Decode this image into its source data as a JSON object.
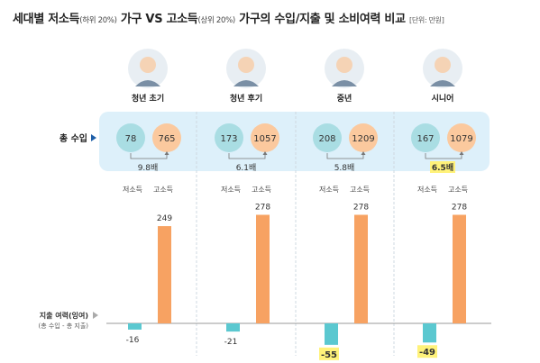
{
  "title": {
    "part1": "세대별 저소득",
    "part1_note": "(하위 20%)",
    "part2": " 가구 VS 고소득",
    "part2_note": "(상위 20%)",
    "part3": " 가구의 수입/지출 및 소비여력 비교",
    "unit": "[단위: 만원]"
  },
  "row_labels": {
    "income": "총 수입",
    "surplus_line1": "지출 여력(잉여)",
    "surplus_line2": "(총 수입 - 총 지출)"
  },
  "colors": {
    "low": "#5BC8D0",
    "high": "#F7A262",
    "panel": "#DDF0FA",
    "low_circle": "#A9DDE3",
    "high_circle": "#FBC99E",
    "highlight": "#FFF27A",
    "arrow": "#1F5FA8"
  },
  "chart_data": {
    "type": "bar",
    "categories": [
      "청년 초기",
      "청년 후기",
      "중년",
      "시니어"
    ],
    "series_labels": [
      "저소득",
      "고소득"
    ],
    "total_income": {
      "low": [
        78,
        173,
        208,
        167
      ],
      "high": [
        765,
        1057,
        1209,
        1079
      ],
      "ratio_labels": [
        "9.8배",
        "6.1배",
        "5.8배",
        "6.5배"
      ],
      "highlighted": [
        false,
        false,
        false,
        true
      ]
    },
    "surplus": {
      "low": [
        -16,
        -21,
        -55,
        -49
      ],
      "high": [
        249,
        278,
        278,
        278
      ],
      "low_labels": [
        "-16",
        "-21",
        "-55",
        "-49"
      ],
      "high_labels": [
        "249",
        "278",
        "278",
        "278"
      ],
      "highlighted_low": [
        false,
        false,
        true,
        true
      ]
    },
    "ylim": [
      -60,
      280
    ]
  }
}
